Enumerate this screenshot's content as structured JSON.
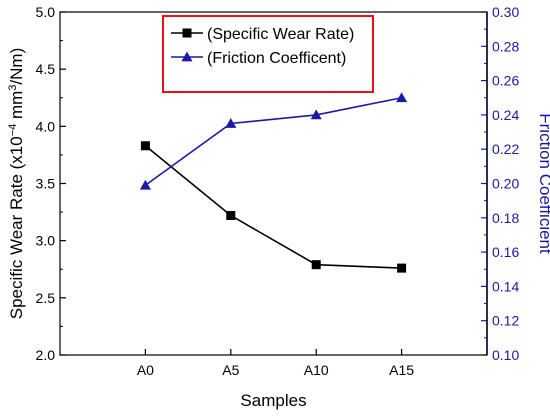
{
  "chart_data": {
    "type": "line",
    "categories": [
      "A0",
      "A5",
      "A10",
      "A15"
    ],
    "xlabel": "Samples",
    "ylabel_left_main": "Specific Wear Rate (x10",
    "ylabel_left_exp1": "−4",
    "ylabel_left_mid": " mm",
    "ylabel_left_exp2": "3",
    "ylabel_left_end": "/Nm)",
    "ylabel_right": "Friction Coefficient",
    "y_left": {
      "range": [
        2.0,
        5.0
      ],
      "ticks": [
        2.0,
        2.5,
        3.0,
        3.5,
        4.0,
        4.5,
        5.0
      ],
      "tick_labels": [
        "2.0",
        "2.5",
        "3.0",
        "3.5",
        "4.0",
        "4.5",
        "5.0"
      ]
    },
    "y_right": {
      "range": [
        0.1,
        0.3
      ],
      "ticks": [
        0.1,
        0.12,
        0.14,
        0.16,
        0.18,
        0.2,
        0.22,
        0.24,
        0.26,
        0.28,
        0.3
      ],
      "tick_labels": [
        "0.10",
        "0.12",
        "0.14",
        "0.16",
        "0.18",
        "0.20",
        "0.22",
        "0.24",
        "0.26",
        "0.28",
        "0.30"
      ],
      "color": "#1a1aa6"
    },
    "series": [
      {
        "name": "(Specific Wear Rate)",
        "axis": "left",
        "marker": "square",
        "color": "#000000",
        "values": [
          3.83,
          3.22,
          2.79,
          2.76
        ]
      },
      {
        "name": "(Friction Coefficent)",
        "axis": "right",
        "marker": "triangle",
        "color": "#1a1aa6",
        "values": [
          0.199,
          0.235,
          0.24,
          0.25
        ]
      }
    ],
    "legend": {
      "placement": "top-center",
      "border_color": "#e8101a",
      "entries": [
        "(Specific Wear Rate)",
        "(Friction Coefficent)"
      ]
    },
    "grid": false
  }
}
